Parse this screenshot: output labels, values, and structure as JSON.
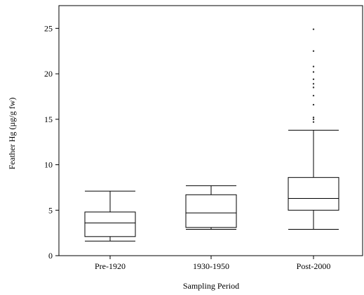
{
  "chart_data": {
    "type": "box",
    "title": "",
    "xlabel": "Sampling Period",
    "ylabel": "Feather Hg (µg/g fw)",
    "ylim": [
      0,
      27.5
    ],
    "yticks": [
      0,
      5,
      10,
      15,
      20,
      25
    ],
    "categories": [
      "Pre-1920",
      "1930-1950",
      "Post-2000"
    ],
    "boxes": [
      {
        "category": "Pre-1920",
        "whisker_low": 1.6,
        "q1": 2.1,
        "median": 3.6,
        "q3": 4.8,
        "whisker_high": 7.1,
        "outliers": []
      },
      {
        "category": "1930-1950",
        "whisker_low": 2.9,
        "q1": 3.1,
        "median": 4.7,
        "q3": 6.7,
        "whisker_high": 7.7,
        "outliers": []
      },
      {
        "category": "Post-2000",
        "whisker_low": 2.9,
        "q1": 5.0,
        "median": 6.3,
        "q3": 8.6,
        "whisker_high": 13.8,
        "outliers": [
          14.7,
          15.0,
          15.2,
          16.6,
          17.6,
          18.5,
          18.9,
          19.4,
          20.2,
          20.8,
          22.5,
          24.9
        ]
      }
    ],
    "grid": false,
    "legend": "none"
  }
}
